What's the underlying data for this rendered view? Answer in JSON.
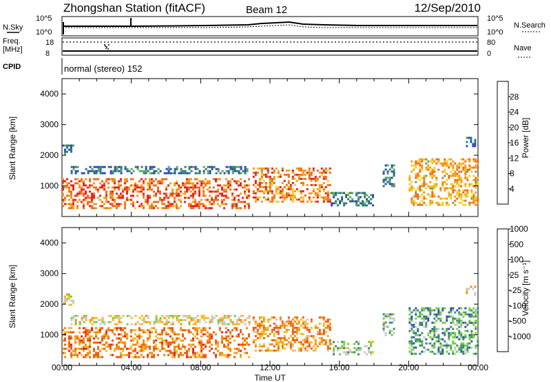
{
  "header": {
    "title": "Zhongshan Station (fitACF)",
    "beam": "Beam 12",
    "date": "12/Sep/2010"
  },
  "summary": {
    "nsky_label": "N.Sky",
    "nsearch_label": "N.Search",
    "noise_ticks": [
      "10^5",
      "10^0"
    ],
    "freq_label": "Freq.",
    "freq_unit": "[MHz]",
    "freq_ticks": [
      "18",
      "8"
    ],
    "nave_label": "Nave",
    "nave_ticks": [
      "80",
      "0"
    ],
    "cpid_label": "CPID",
    "mode_text": "normal (stereo) 152"
  },
  "axes": {
    "ylabel": "Slant Range [km]",
    "yticks": [
      "1000",
      "2000",
      "3000",
      "4000"
    ],
    "xlabel": "Time UT",
    "xticks": [
      "00:00",
      "04:00",
      "08:00",
      "12:00",
      "16:00",
      "20:00",
      "00:00"
    ]
  },
  "colors": {
    "power": [
      "#1a3fff",
      "#2c4fa0",
      "#2e7d6b",
      "#5aa860",
      "#f0d020",
      "#f39c12",
      "#ee6a1c",
      "#e62020"
    ],
    "velocity": [
      "#e62020",
      "#f05a10",
      "#f38a10",
      "#f6b81e",
      "#c8c8c8",
      "#6ecf3a",
      "#3f8a6e",
      "#2a55a8"
    ]
  },
  "chart_data": [
    {
      "type": "heatmap",
      "name": "Power",
      "colorbar_label": "Power [dB]",
      "colorbar_ticks": [
        "4",
        "8",
        "12",
        "16",
        "20",
        "24",
        "28"
      ],
      "x_range_hours": [
        0,
        24
      ],
      "y_range_km": [
        0,
        4500
      ],
      "regions": [
        {
          "t0": 0.0,
          "t1": 10.8,
          "r0": 250,
          "r1": 1250,
          "v": 0.85
        },
        {
          "t0": 0.5,
          "t1": 10.8,
          "r0": 1400,
          "r1": 1650,
          "v": 0.25
        },
        {
          "t0": 0.0,
          "t1": 0.6,
          "r0": 1950,
          "r1": 2350,
          "v": 0.2
        },
        {
          "t0": 11.0,
          "t1": 15.5,
          "r0": 500,
          "r1": 1600,
          "v": 0.8
        },
        {
          "t0": 15.5,
          "t1": 18.0,
          "r0": 350,
          "r1": 800,
          "v": 0.3
        },
        {
          "t0": 18.5,
          "t1": 19.2,
          "r0": 1000,
          "r1": 1700,
          "v": 0.3
        },
        {
          "t0": 20.0,
          "t1": 24.0,
          "r0": 400,
          "r1": 1900,
          "v": 0.7
        },
        {
          "t0": 23.3,
          "t1": 23.8,
          "r0": 2300,
          "r1": 2600,
          "v": 0.2
        }
      ]
    },
    {
      "type": "heatmap",
      "name": "Velocity",
      "colorbar_label": "Velocity [m s⁻¹]",
      "colorbar_ticks": [
        "-1000",
        "-500",
        "-100",
        "-25",
        "25",
        "100",
        "500",
        "1000"
      ],
      "x_range_hours": [
        0,
        24
      ],
      "y_range_km": [
        0,
        4500
      ],
      "regions": [
        {
          "t0": 0.0,
          "t1": 10.8,
          "r0": 250,
          "r1": 1250,
          "v": 0.25
        },
        {
          "t0": 0.5,
          "t1": 10.8,
          "r0": 1350,
          "r1": 1650,
          "v": 0.5
        },
        {
          "t0": 0.0,
          "t1": 0.6,
          "r0": 1950,
          "r1": 2350,
          "v": 0.5
        },
        {
          "t0": 11.0,
          "t1": 15.5,
          "r0": 500,
          "r1": 1600,
          "v": 0.3
        },
        {
          "t0": 15.5,
          "t1": 18.0,
          "r0": 350,
          "r1": 800,
          "v": 0.65
        },
        {
          "t0": 18.5,
          "t1": 19.2,
          "r0": 1000,
          "r1": 1700,
          "v": 0.7
        },
        {
          "t0": 20.0,
          "t1": 24.0,
          "r0": 400,
          "r1": 1900,
          "v": 0.8
        },
        {
          "t0": 23.3,
          "t1": 23.8,
          "r0": 2300,
          "r1": 2600,
          "v": 0.5
        }
      ]
    }
  ]
}
